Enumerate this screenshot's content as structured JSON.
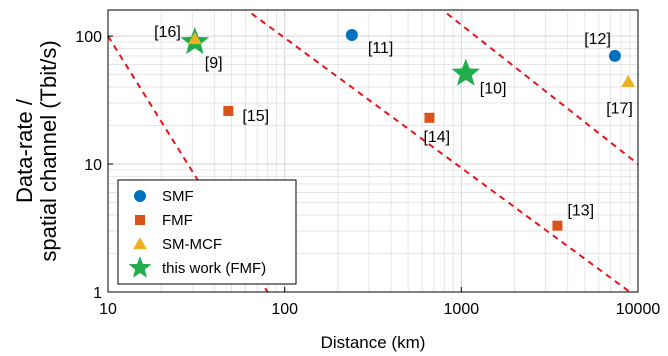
{
  "chart_data": {
    "type": "scatter",
    "xlabel": "Distance (km)",
    "ylabel": [
      "Data-rate /",
      "spatial channel (Tbit/s)"
    ],
    "xscale": "log",
    "yscale": "log",
    "xlim": [
      10,
      10000
    ],
    "ylim": [
      1,
      160
    ],
    "xticks": [
      10,
      100,
      1000,
      10000
    ],
    "xtick_labels": [
      "10",
      "100",
      "1000",
      "10000"
    ],
    "yticks": [
      1,
      10,
      100
    ],
    "ytick_labels": [
      "1",
      "10",
      "100"
    ],
    "grid": true,
    "legend_position": "bottom-left",
    "series": [
      {
        "name": "SMF",
        "marker": "circle",
        "color": "#0072BD",
        "points": [
          {
            "x": 240,
            "y": 102,
            "label": "[11]"
          },
          {
            "x": 7400,
            "y": 70,
            "label": "[12]"
          }
        ]
      },
      {
        "name": "FMF",
        "marker": "square",
        "color": "#D95319",
        "points": [
          {
            "x": 48,
            "y": 26,
            "label": "[15]"
          },
          {
            "x": 660,
            "y": 23,
            "label": "[14]"
          },
          {
            "x": 3500,
            "y": 3.3,
            "label": "[13]"
          }
        ]
      },
      {
        "name": "SM-MCF",
        "marker": "triangle",
        "color": "#EDB120",
        "points": [
          {
            "x": 31,
            "y": 95,
            "label": "[16]"
          },
          {
            "x": 8800,
            "y": 44,
            "label": "[17]"
          }
        ]
      },
      {
        "name": "this work (FMF)",
        "marker": "star",
        "color": "#1FAE4B",
        "points": [
          {
            "x": 31,
            "y": 90,
            "label": "[9]"
          },
          {
            "x": 1060,
            "y": 51,
            "label": "[10]"
          }
        ]
      }
    ],
    "reference_lines": {
      "style": "dashed",
      "color": "#E8141C",
      "lines": [
        {
          "points": [
            [
              10,
              100
            ],
            [
              80,
              1
            ]
          ]
        },
        {
          "points": [
            [
              65,
              150
            ],
            [
              9000,
              1
            ]
          ]
        },
        {
          "points": [
            [
              830,
              150
            ],
            [
              10000,
              10
            ]
          ]
        }
      ]
    }
  }
}
